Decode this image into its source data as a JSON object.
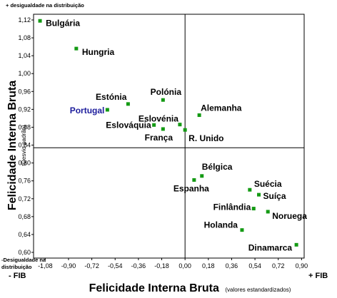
{
  "chart_data": {
    "type": "scatter",
    "xlabel": "Felicidade Interna Bruta",
    "xlabel_note": "(valores estandardizados)",
    "ylabel": "Felicidade Interna Bruta",
    "ylabel_note": "(Desvio-padrão)",
    "top_note": "+ desigualdade na distribuição",
    "bottom_note_line1": "-Desigualdade na",
    "bottom_note_line2": "distribuição",
    "x_left_label": "- FIB",
    "x_right_label": "+ FIB",
    "xlim": [
      -1.17,
      0.92
    ],
    "ylim": [
      0.6,
      1.12
    ],
    "x_ticks": [
      "-1,08",
      "-0,90",
      "-0,72",
      "-0,54",
      "-0,36",
      "-0,18",
      "0,00",
      "0,18",
      "0,36",
      "0,54",
      "0,72",
      "0,90"
    ],
    "y_ticks": [
      "0,60",
      "0,64",
      "0,68",
      "0,72",
      "0,76",
      "0,80",
      "0,84",
      "0,88",
      "0,92",
      "0,96",
      "1,00",
      "1,04",
      "1,08",
      "1,12"
    ],
    "divider_x": 0.0,
    "divider_y": 0.834,
    "grid": false,
    "marker_color": "#149a14",
    "highlight_color": "#1c1c9c",
    "points": [
      {
        "name": "Bulgária",
        "x": -1.12,
        "y": 1.118
      },
      {
        "name": "Hungria",
        "x": -0.84,
        "y": 1.056
      },
      {
        "name": "Estónia",
        "x": -0.44,
        "y": 0.932
      },
      {
        "name": "Polónia",
        "x": -0.17,
        "y": 0.941
      },
      {
        "name": "Portugal",
        "x": -0.6,
        "y": 0.919,
        "highlight": true
      },
      {
        "name": "Alemanha",
        "x": 0.11,
        "y": 0.907
      },
      {
        "name": "Eslovénia",
        "x": -0.04,
        "y": 0.886
      },
      {
        "name": "Eslováquia",
        "x": -0.24,
        "y": 0.885
      },
      {
        "name": "França",
        "x": -0.17,
        "y": 0.876
      },
      {
        "name": "R. Unido",
        "x": 0.0,
        "y": 0.874
      },
      {
        "name": "Bélgica",
        "x": 0.13,
        "y": 0.771
      },
      {
        "name": "Espanha",
        "x": 0.07,
        "y": 0.762
      },
      {
        "name": "Suécia",
        "x": 0.5,
        "y": 0.74
      },
      {
        "name": "Suíça",
        "x": 0.57,
        "y": 0.729
      },
      {
        "name": "Finlândia",
        "x": 0.53,
        "y": 0.698
      },
      {
        "name": "Noruega",
        "x": 0.64,
        "y": 0.691
      },
      {
        "name": "Holanda",
        "x": 0.44,
        "y": 0.65
      },
      {
        "name": "Dinamarca",
        "x": 0.86,
        "y": 0.617
      }
    ]
  }
}
